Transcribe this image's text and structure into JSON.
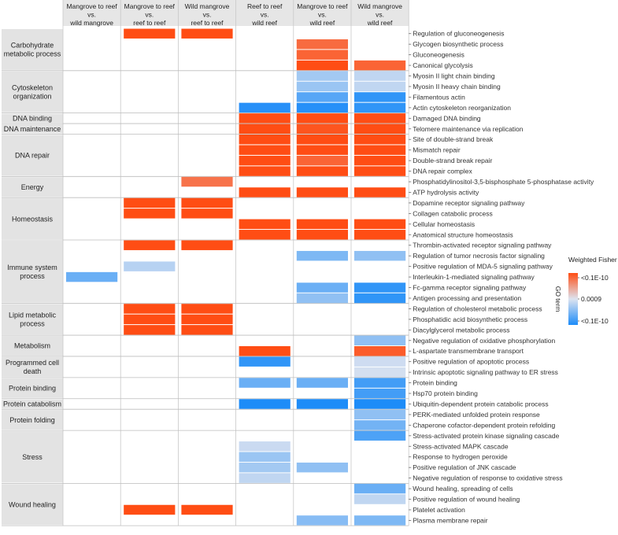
{
  "chart_data": {
    "type": "heatmap",
    "legend": {
      "title": "Weighted Fisher",
      "subtitle": "GO term",
      "labels": [
        "<0.1E-10",
        "0.0009",
        "<0.1E-10"
      ],
      "colors": {
        "up": "#ff4d14",
        "mid": "#dde3f0",
        "down": "#1d8cf8"
      },
      "placement": "right"
    },
    "columns": [
      {
        "lines": [
          "Mangrove to reef",
          "vs.",
          "wild mangrove"
        ]
      },
      {
        "lines": [
          "Mangrove to reef",
          "vs.",
          "reef to reef"
        ]
      },
      {
        "lines": [
          "Wild mangrove",
          "vs.",
          "reef to reef"
        ]
      },
      {
        "lines": [
          "Reef to reef",
          "vs.",
          "wild reef"
        ]
      },
      {
        "lines": [
          "Mangrove to reef",
          "vs.",
          "wild reef"
        ]
      },
      {
        "lines": [
          "Wild mangrove",
          "vs.",
          "wild reef"
        ]
      }
    ],
    "groups": [
      {
        "lines": [
          "Carbohydrate",
          "metabolic process"
        ],
        "terms": [
          {
            "label": "Regulation of gluconeogenesis",
            "values": [
              null,
              1,
              1,
              null,
              null,
              null
            ]
          },
          {
            "label": "Glycogen biosynthetic process",
            "values": [
              null,
              null,
              null,
              null,
              0.8,
              null
            ]
          },
          {
            "label": "Gluconeogenesis",
            "values": [
              null,
              null,
              null,
              null,
              0.85,
              null
            ]
          },
          {
            "label": "Canonical glycolysis",
            "values": [
              null,
              null,
              null,
              null,
              1,
              0.85
            ]
          }
        ]
      },
      {
        "lines": [
          "Cytoskeleton",
          "organization"
        ],
        "terms": [
          {
            "label": "Myosin II light chain binding",
            "values": [
              null,
              null,
              null,
              null,
              -0.3,
              -0.15
            ]
          },
          {
            "label": "Myosin II heavy chain binding",
            "values": [
              null,
              null,
              null,
              null,
              -0.35,
              -0.15
            ]
          },
          {
            "label": "Filamentous actin",
            "values": [
              null,
              null,
              null,
              null,
              -0.7,
              -0.9
            ]
          },
          {
            "label": "Actin cytoskeleton reorganization",
            "values": [
              null,
              null,
              null,
              -0.95,
              -0.95,
              -0.9
            ]
          }
        ]
      },
      {
        "lines": [
          "DNA binding"
        ],
        "terms": [
          {
            "label": "Damaged DNA binding",
            "values": [
              null,
              null,
              null,
              1,
              1,
              1
            ]
          }
        ]
      },
      {
        "lines": [
          "DNA maintenance"
        ],
        "terms": [
          {
            "label": "Telomere maintenance via replication",
            "values": [
              null,
              null,
              null,
              1,
              0.95,
              1
            ]
          }
        ]
      },
      {
        "lines": [
          "DNA repair"
        ],
        "terms": [
          {
            "label": "Site of double-strand break",
            "values": [
              null,
              null,
              null,
              1,
              1,
              1
            ]
          },
          {
            "label": "Mismatch repair",
            "values": [
              null,
              null,
              null,
              1,
              1,
              1
            ]
          },
          {
            "label": "Double-strand break repair",
            "values": [
              null,
              null,
              null,
              1,
              0.85,
              1
            ]
          },
          {
            "label": "DNA repair complex",
            "values": [
              null,
              null,
              null,
              1,
              1,
              1
            ]
          }
        ]
      },
      {
        "lines": [
          "Energy"
        ],
        "terms": [
          {
            "label": "Phosphatidylinositol-3,5-bisphosphate 5-phosphatase activity",
            "values": [
              null,
              null,
              0.75,
              null,
              null,
              null
            ]
          },
          {
            "label": "ATP hydrolysis activity",
            "values": [
              null,
              null,
              null,
              1,
              1,
              1
            ]
          }
        ]
      },
      {
        "lines": [
          "Homeostasis"
        ],
        "terms": [
          {
            "label": "Dopamine receptor signaling pathway",
            "values": [
              null,
              1,
              1,
              null,
              null,
              null
            ]
          },
          {
            "label": "Collagen catabolic process",
            "values": [
              null,
              1,
              1,
              null,
              null,
              null
            ]
          },
          {
            "label": "Cellular homeostasis",
            "values": [
              null,
              null,
              null,
              1,
              1,
              1
            ]
          },
          {
            "label": "Anatomical structure homeostasis",
            "values": [
              null,
              null,
              null,
              1,
              1,
              1
            ]
          }
        ]
      },
      {
        "lines": [
          "Immune system",
          "process"
        ],
        "terms": [
          {
            "label": "Thrombin-activated receptor signaling pathway",
            "values": [
              null,
              1,
              1,
              null,
              null,
              null
            ]
          },
          {
            "label": "Regulation of tumor necrosis factor signaling",
            "values": [
              null,
              null,
              null,
              null,
              -0.5,
              -0.4
            ]
          },
          {
            "label": "Positive regulation of MDA-5 signaling pathway",
            "values": [
              null,
              -0.2,
              null,
              null,
              null,
              null
            ]
          },
          {
            "label": "Interleukin-1-mediated signaling pathway",
            "values": [
              -0.6,
              null,
              null,
              null,
              null,
              null
            ]
          },
          {
            "label": "Fc-gamma receptor signaling pathway",
            "values": [
              null,
              null,
              null,
              null,
              -0.6,
              -0.9
            ]
          },
          {
            "label": "Antigen processing and presentation",
            "values": [
              null,
              null,
              null,
              null,
              -0.4,
              -0.9
            ]
          }
        ]
      },
      {
        "lines": [
          "Lipid metabolic",
          "process"
        ],
        "terms": [
          {
            "label": "Regulation of cholesterol metabolic process",
            "values": [
              null,
              1,
              1,
              null,
              null,
              null
            ]
          },
          {
            "label": "Phosphatidic acid biosynthetic process",
            "values": [
              null,
              1,
              1,
              null,
              null,
              null
            ]
          },
          {
            "label": "Diacylglycerol metabolic process",
            "values": [
              null,
              1,
              1,
              null,
              null,
              null
            ]
          }
        ]
      },
      {
        "lines": [
          "Metabolism"
        ],
        "terms": [
          {
            "label": "Negative regulation of oxidative phosphorylation",
            "values": [
              null,
              null,
              null,
              null,
              null,
              -0.4
            ]
          },
          {
            "label": "L-aspartate transmembrane transport",
            "values": [
              null,
              null,
              null,
              1,
              null,
              0.9
            ]
          }
        ]
      },
      {
        "lines": [
          "Programmed cell",
          "death"
        ],
        "terms": [
          {
            "label": "Positive regulation of apoptotic process",
            "values": [
              null,
              null,
              null,
              -0.9,
              null,
              -0.08
            ]
          },
          {
            "label": "Intrinsic apoptotic signaling pathway to ER stress",
            "values": [
              null,
              null,
              null,
              null,
              null,
              -0.05
            ]
          }
        ]
      },
      {
        "lines": [
          "Protein binding"
        ],
        "terms": [
          {
            "label": "Protein binding",
            "values": [
              null,
              null,
              null,
              -0.6,
              -0.6,
              -0.8
            ]
          },
          {
            "label": "Hsp70 protein binding",
            "values": [
              null,
              null,
              null,
              null,
              null,
              -0.8
            ]
          }
        ]
      },
      {
        "lines": [
          "Protein catabolism"
        ],
        "terms": [
          {
            "label": "Ubiquitin-dependent protein catabolic process",
            "values": [
              null,
              null,
              null,
              -1,
              -1,
              -1
            ]
          }
        ]
      },
      {
        "lines": [
          "Protein folding"
        ],
        "terms": [
          {
            "label": "PERK-mediated unfolded protein response",
            "values": [
              null,
              null,
              null,
              null,
              null,
              -0.4
            ]
          },
          {
            "label": "Chaperone cofactor-dependent protein refolding",
            "values": [
              null,
              null,
              null,
              null,
              null,
              -0.55
            ]
          }
        ]
      },
      {
        "lines": [
          "Stress"
        ],
        "terms": [
          {
            "label": "Stress-activated protein kinase signaling cascade",
            "values": [
              null,
              null,
              null,
              null,
              null,
              -0.75
            ]
          },
          {
            "label": "Stress-activated MAPK cascade",
            "values": [
              null,
              null,
              null,
              -0.1,
              null,
              null
            ]
          },
          {
            "label": "Response to hydrogen peroxide",
            "values": [
              null,
              null,
              null,
              -0.35,
              null,
              null
            ]
          },
          {
            "label": "Positive regulation of JNK cascade",
            "values": [
              null,
              null,
              null,
              -0.3,
              -0.4,
              null
            ]
          },
          {
            "label": "Negative regulation of response to oxidative stress",
            "values": [
              null,
              null,
              null,
              -0.15,
              null,
              null
            ]
          }
        ]
      },
      {
        "lines": [
          "Wound healing"
        ],
        "terms": [
          {
            "label": "Wound healing, spreading of cells",
            "values": [
              null,
              null,
              null,
              null,
              null,
              -0.6
            ]
          },
          {
            "label": "Positive regulation of wound healing",
            "values": [
              null,
              null,
              null,
              null,
              null,
              -0.15
            ]
          },
          {
            "label": "Platelet activation",
            "values": [
              null,
              1,
              1,
              null,
              null,
              null
            ]
          },
          {
            "label": "Plasma membrane repair",
            "values": [
              null,
              null,
              null,
              null,
              -0.45,
              -0.5
            ]
          }
        ]
      }
    ]
  }
}
